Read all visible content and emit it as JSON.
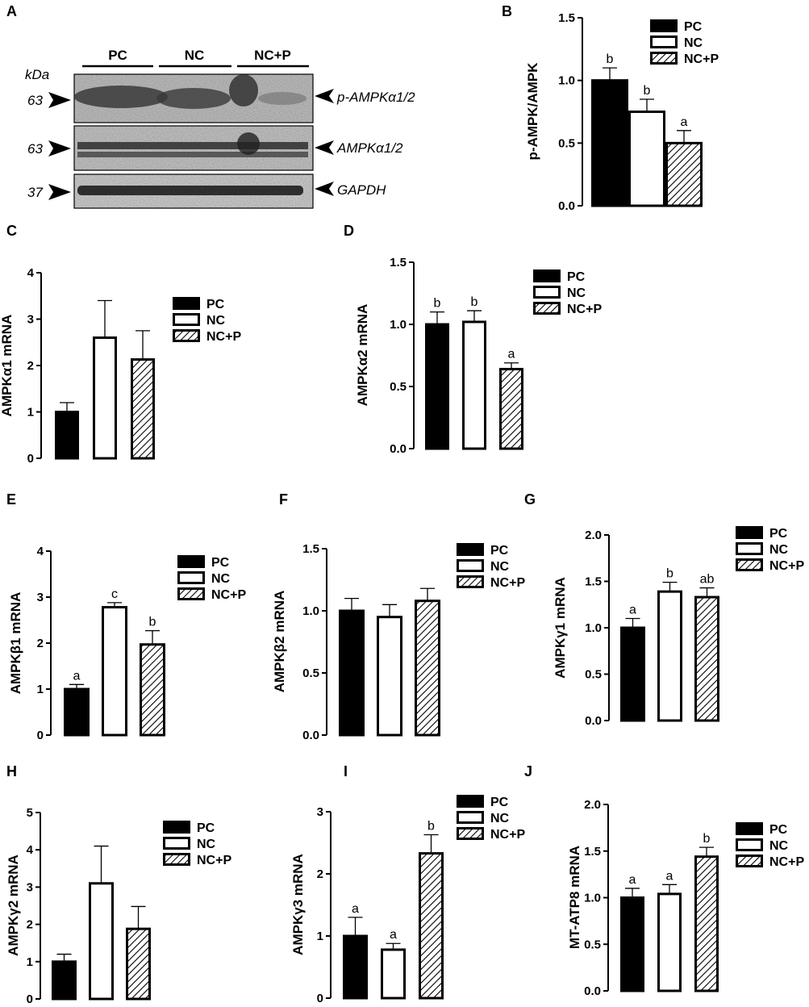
{
  "legend_labels": [
    "PC",
    "NC",
    "NC+P"
  ],
  "blot": {
    "panel": "A",
    "kda_label": "kDa",
    "groups": [
      "PC",
      "NC",
      "NC+P"
    ],
    "bands": [
      {
        "kda": "63",
        "name": "p-AMPKα1/2"
      },
      {
        "kda": "63",
        "name": "AMPKα1/2"
      },
      {
        "kda": "37",
        "name": "GAPDH"
      }
    ]
  },
  "chart_data": [
    {
      "panel": "B",
      "type": "bar",
      "categories": [
        "PC",
        "NC",
        "NC+P"
      ],
      "values": [
        1.0,
        0.75,
        0.5
      ],
      "errors": [
        0.1,
        0.1,
        0.1
      ],
      "sig": [
        "b",
        "b",
        "a"
      ],
      "ylabel": "p-AMPK/AMPK",
      "ylim": [
        0,
        1.5
      ],
      "ticks": [
        "0.0",
        "0.5",
        "1.0",
        "1.5"
      ]
    },
    {
      "panel": "C",
      "type": "bar",
      "categories": [
        "PC",
        "NC",
        "NC+P"
      ],
      "values": [
        1.0,
        2.6,
        2.13
      ],
      "errors": [
        0.2,
        0.8,
        0.62
      ],
      "sig": [
        "",
        "",
        ""
      ],
      "ylabel": "AMPKα1 mRNA",
      "ylim": [
        0,
        4
      ],
      "ticks": [
        "0",
        "1",
        "2",
        "3",
        "4"
      ]
    },
    {
      "panel": "D",
      "type": "bar",
      "categories": [
        "PC",
        "NC",
        "NC+P"
      ],
      "values": [
        1.0,
        1.02,
        0.64
      ],
      "errors": [
        0.1,
        0.09,
        0.05
      ],
      "sig": [
        "b",
        "b",
        "a"
      ],
      "ylabel": "AMPKα2 mRNA",
      "ylim": [
        0,
        1.5
      ],
      "ticks": [
        "0.0",
        "0.5",
        "1.0",
        "1.5"
      ]
    },
    {
      "panel": "E",
      "type": "bar",
      "categories": [
        "PC",
        "NC",
        "NC+P"
      ],
      "values": [
        1.0,
        2.78,
        1.97
      ],
      "errors": [
        0.1,
        0.1,
        0.3
      ],
      "sig": [
        "a",
        "c",
        "b"
      ],
      "ylabel": "AMPKβ1 mRNA",
      "ylim": [
        0,
        4
      ],
      "ticks": [
        "0",
        "1",
        "2",
        "3",
        "4"
      ]
    },
    {
      "panel": "F",
      "type": "bar",
      "categories": [
        "PC",
        "NC",
        "NC+P"
      ],
      "values": [
        1.0,
        0.95,
        1.08
      ],
      "errors": [
        0.1,
        0.1,
        0.1
      ],
      "sig": [
        "",
        "",
        ""
      ],
      "ylabel": "AMPKβ2 mRNA",
      "ylim": [
        0,
        1.5
      ],
      "ticks": [
        "0.0",
        "0.5",
        "1.0",
        "1.5"
      ]
    },
    {
      "panel": "G",
      "type": "bar",
      "categories": [
        "PC",
        "NC",
        "NC+P"
      ],
      "values": [
        1.0,
        1.39,
        1.33
      ],
      "errors": [
        0.1,
        0.1,
        0.1
      ],
      "sig": [
        "a",
        "b",
        "ab"
      ],
      "ylabel": "AMPKγ1 mRNA",
      "ylim": [
        0,
        2.0
      ],
      "ticks": [
        "0.0",
        "0.5",
        "1.0",
        "1.5",
        "2.0"
      ]
    },
    {
      "panel": "H",
      "type": "bar",
      "categories": [
        "PC",
        "NC",
        "NC+P"
      ],
      "values": [
        1.0,
        3.1,
        1.88
      ],
      "errors": [
        0.2,
        1.0,
        0.6
      ],
      "sig": [
        "",
        "",
        ""
      ],
      "ylabel": "AMPKγ2 mRNA",
      "ylim": [
        0,
        5
      ],
      "ticks": [
        "0",
        "1",
        "2",
        "3",
        "4",
        "5"
      ]
    },
    {
      "panel": "I",
      "type": "bar",
      "categories": [
        "PC",
        "NC",
        "NC+P"
      ],
      "values": [
        1.0,
        0.78,
        2.33
      ],
      "errors": [
        0.3,
        0.1,
        0.3
      ],
      "sig": [
        "a",
        "a",
        "b"
      ],
      "ylabel": "AMPKγ3 mRNA",
      "ylim": [
        0,
        3
      ],
      "ticks": [
        "0",
        "1",
        "2",
        "3"
      ]
    },
    {
      "panel": "J",
      "type": "bar",
      "categories": [
        "PC",
        "NC",
        "NC+P"
      ],
      "values": [
        1.0,
        1.04,
        1.44
      ],
      "errors": [
        0.1,
        0.1,
        0.1
      ],
      "sig": [
        "a",
        "a",
        "b"
      ],
      "ylabel": "MT-ATP8 mRNA",
      "ylim": [
        0,
        2.0
      ],
      "ticks": [
        "0.0",
        "0.5",
        "1.0",
        "1.5",
        "2.0"
      ]
    }
  ]
}
